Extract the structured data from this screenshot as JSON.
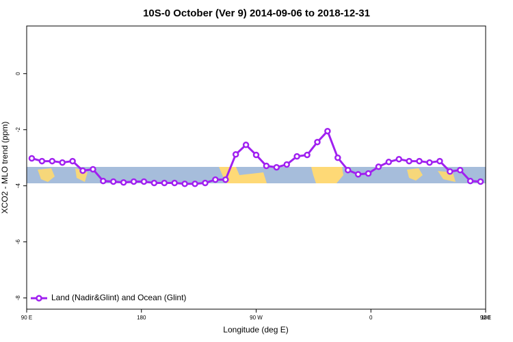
{
  "chart_data": {
    "type": "line",
    "title": "10S-0 October (Ver 9)   2014-09-06 to 2018-12-31",
    "xlabel": "Longitude (deg E)",
    "ylabel": "XCO2 - MLO trend (ppm)",
    "xlim": [
      90,
      450
    ],
    "xticks": [
      {
        "value": 90,
        "label": "90 E"
      },
      {
        "value": 180,
        "label": "180"
      },
      {
        "value": 270,
        "label": "90 W"
      },
      {
        "value": 360,
        "label": "0"
      },
      {
        "value": 450,
        "label": "90 E"
      }
    ],
    "x2ticks": [
      {
        "value": 450,
        "label": "180"
      }
    ],
    "ylim": [
      -8.4,
      1.7
    ],
    "yticks": [
      0,
      -2,
      -4,
      -6,
      -8
    ],
    "legend": "bottom-left",
    "x": [
      94,
      102,
      110,
      118,
      126,
      134,
      142,
      150,
      158,
      166,
      174,
      182,
      190,
      198,
      206,
      214,
      222,
      230,
      238,
      246,
      254,
      262,
      270,
      278,
      286,
      294,
      302,
      310,
      318,
      326,
      334,
      342,
      350,
      358,
      366,
      374,
      382,
      390,
      398,
      406,
      414,
      422,
      430,
      438,
      446
    ],
    "series": [
      {
        "name": "Land (Nadir&Glint) and Ocean (Glint)",
        "color": "#a020f0",
        "values": [
          -3.02,
          -3.12,
          -3.12,
          -3.17,
          -3.12,
          -3.46,
          -3.41,
          -3.83,
          -3.85,
          -3.88,
          -3.85,
          -3.85,
          -3.9,
          -3.9,
          -3.9,
          -3.93,
          -3.93,
          -3.9,
          -3.78,
          -3.78,
          -2.88,
          -2.54,
          -2.9,
          -3.29,
          -3.34,
          -3.24,
          -2.95,
          -2.9,
          -2.44,
          -2.05,
          -3.0,
          -3.44,
          -3.59,
          -3.56,
          -3.32,
          -3.15,
          -3.05,
          -3.12,
          -3.12,
          -3.17,
          -3.12,
          -3.49,
          -3.44,
          -3.83,
          -3.85
        ]
      }
    ]
  }
}
